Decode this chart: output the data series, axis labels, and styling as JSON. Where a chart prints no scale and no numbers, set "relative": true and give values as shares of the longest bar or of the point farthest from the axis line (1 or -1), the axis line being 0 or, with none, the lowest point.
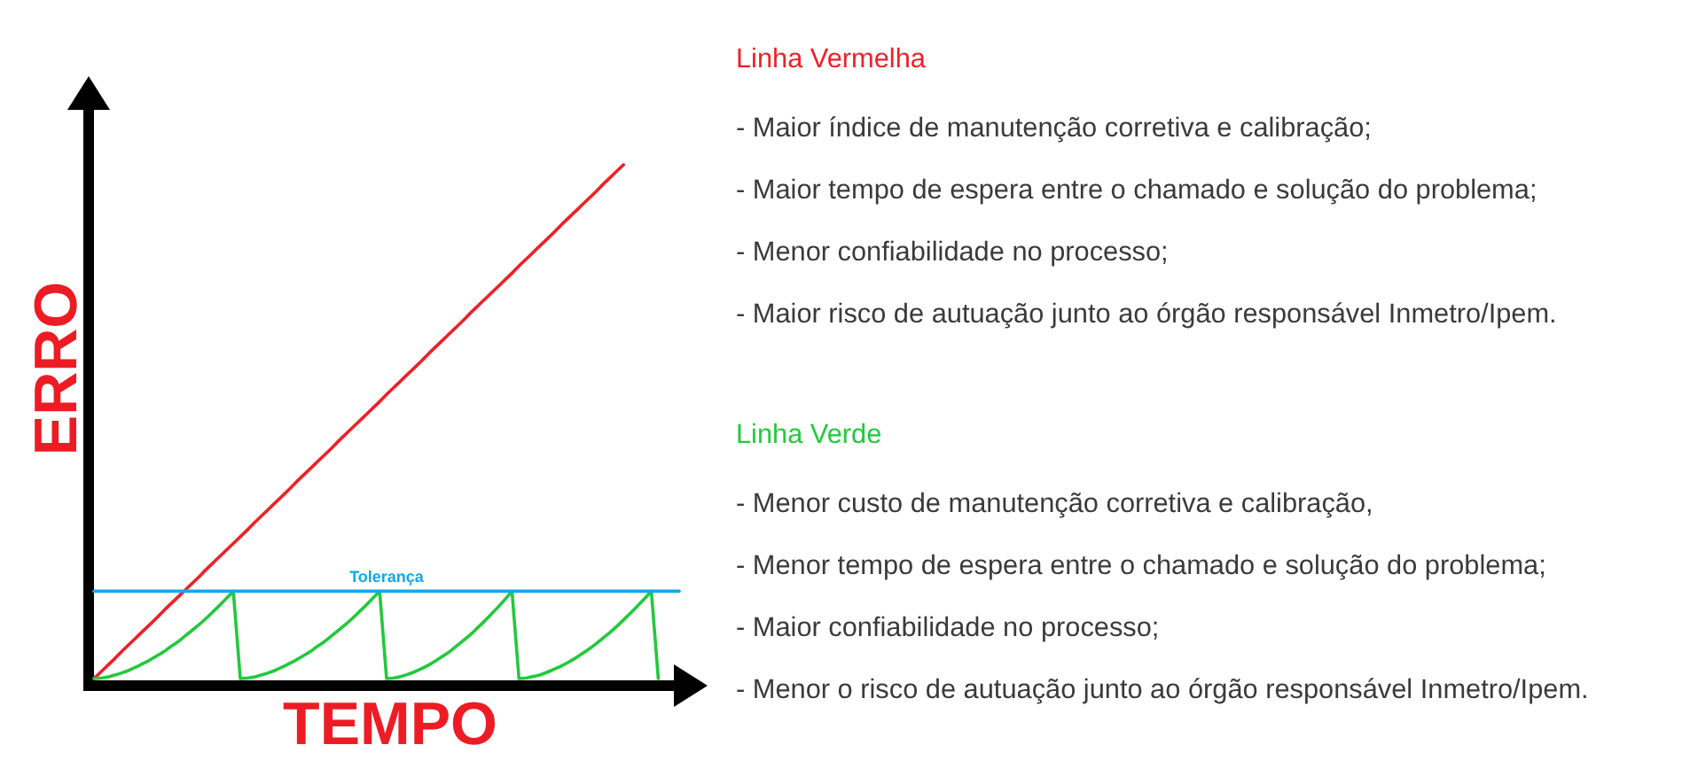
{
  "chart_data": {
    "type": "line",
    "xlabel": "TEMPO",
    "ylabel": "ERRO",
    "relative": true,
    "categories": [
      null,
      null,
      null,
      null,
      null,
      null,
      null,
      null,
      null,
      null,
      null,
      null,
      null,
      null,
      null,
      null,
      null,
      null,
      null,
      null,
      null,
      null,
      null,
      null,
      null,
      null,
      null,
      null,
      null,
      null,
      null,
      null,
      null,
      null,
      null,
      null,
      null,
      null,
      null,
      null,
      null,
      null,
      null,
      null,
      null,
      null,
      null,
      null,
      null,
      null,
      null,
      null,
      null,
      null,
      null,
      null,
      null,
      null,
      null,
      null,
      null,
      null,
      null,
      null,
      null,
      null,
      null,
      null,
      null,
      null,
      null,
      null,
      null,
      null,
      null,
      null,
      null,
      null,
      null,
      null,
      null,
      null,
      null,
      null,
      null
    ],
    "series": [
      {
        "name": "Linha Vermelha",
        "color": "#ee2027",
        "values": [
          0,
          0.013,
          0.026,
          0.039,
          0.053,
          0.066,
          0.079,
          0.092,
          0.105,
          0.118,
          0.132,
          0.145,
          0.158,
          0.171,
          0.184,
          0.197,
          0.211,
          0.224,
          0.237,
          0.25,
          0.263,
          0.276,
          0.289,
          0.303,
          0.316,
          0.329,
          0.342,
          0.355,
          0.368,
          0.382,
          0.395,
          0.408,
          0.421,
          0.434,
          0.447,
          0.461,
          0.474,
          0.487,
          0.5,
          0.513,
          0.526,
          0.539,
          0.553,
          0.566,
          0.579,
          0.592,
          0.605,
          0.618,
          0.632,
          0.645,
          0.658,
          0.671,
          0.684,
          0.697,
          0.711,
          0.724,
          0.737,
          0.75,
          0.763,
          0.776,
          0.789,
          0.803,
          0.816,
          0.829,
          0.842,
          0.855,
          0.868,
          0.882,
          0.895,
          0.908,
          0.921,
          0.934,
          0.947,
          0.961,
          0.974,
          0.987,
          1,
          null,
          null,
          null,
          null,
          null,
          null,
          null,
          null
        ]
      },
      {
        "name": "Linha Verde",
        "color": "#22c93c",
        "values": [
          0,
          0.001,
          0.003,
          0.007,
          0.011,
          0.016,
          0.022,
          0.029,
          0.036,
          0.044,
          0.052,
          0.062,
          0.071,
          0.082,
          0.093,
          0.104,
          0.116,
          0.129,
          0.142,
          0.156,
          0.17,
          0,
          0.001,
          0.003,
          0.007,
          0.011,
          0.016,
          0.022,
          0.029,
          0.036,
          0.044,
          0.052,
          0.062,
          0.071,
          0.082,
          0.093,
          0.104,
          0.116,
          0.129,
          0.142,
          0.156,
          0.17,
          0,
          0.001,
          0.004,
          0.008,
          0.013,
          0.019,
          0.026,
          0.034,
          0.043,
          0.052,
          0.063,
          0.074,
          0.085,
          0.098,
          0.111,
          0.125,
          0.139,
          0.154,
          0.17,
          0,
          0.001,
          0.004,
          0.007,
          0.012,
          0.018,
          0.024,
          0.031,
          0.039,
          0.048,
          0.057,
          0.067,
          0.078,
          0.089,
          0.101,
          0.114,
          0.127,
          0.141,
          0.155,
          0.17,
          0,
          null,
          null,
          null
        ]
      },
      {
        "name": "Tolerança",
        "color": "#12a8ec",
        "values": [
          0.17,
          0.17,
          0.17,
          0.17,
          0.17,
          0.17,
          0.17,
          0.17,
          0.17,
          0.17,
          0.17,
          0.17,
          0.17,
          0.17,
          0.17,
          0.17,
          0.17,
          0.17,
          0.17,
          0.17,
          0.17,
          0.17,
          0.17,
          0.17,
          0.17,
          0.17,
          0.17,
          0.17,
          0.17,
          0.17,
          0.17,
          0.17,
          0.17,
          0.17,
          0.17,
          0.17,
          0.17,
          0.17,
          0.17,
          0.17,
          0.17,
          0.17,
          0.17,
          0.17,
          0.17,
          0.17,
          0.17,
          0.17,
          0.17,
          0.17,
          0.17,
          0.17,
          0.17,
          0.17,
          0.17,
          0.17,
          0.17,
          0.17,
          0.17,
          0.17,
          0.17,
          0.17,
          0.17,
          0.17,
          0.17,
          0.17,
          0.17,
          0.17,
          0.17,
          0.17,
          0.17,
          0.17,
          0.17,
          0.17,
          0.17,
          0.17,
          0.17,
          0.17,
          0.17,
          0.17,
          0.17,
          0.17,
          0.17,
          0.17,
          0.17
        ]
      }
    ],
    "annotations": [
      "- Maior índice de manutenção corretiva e calibração;",
      "- Maior tempo de espera entre o chamado e solução do problema;",
      "- Menor confiabilidade no processo;",
      "- Maior risco de autuação junto ao órgão responsável Inmetro/Ipem.",
      "- Menor custo de manutenção corretiva e calibração,",
      "- Menor tempo de espera entre o chamado e solução do problema;",
      "- Maior confiabilidade no processo;",
      "- Menor o risco de autuação junto ao órgão responsável Inmetro/Ipem."
    ]
  }
}
